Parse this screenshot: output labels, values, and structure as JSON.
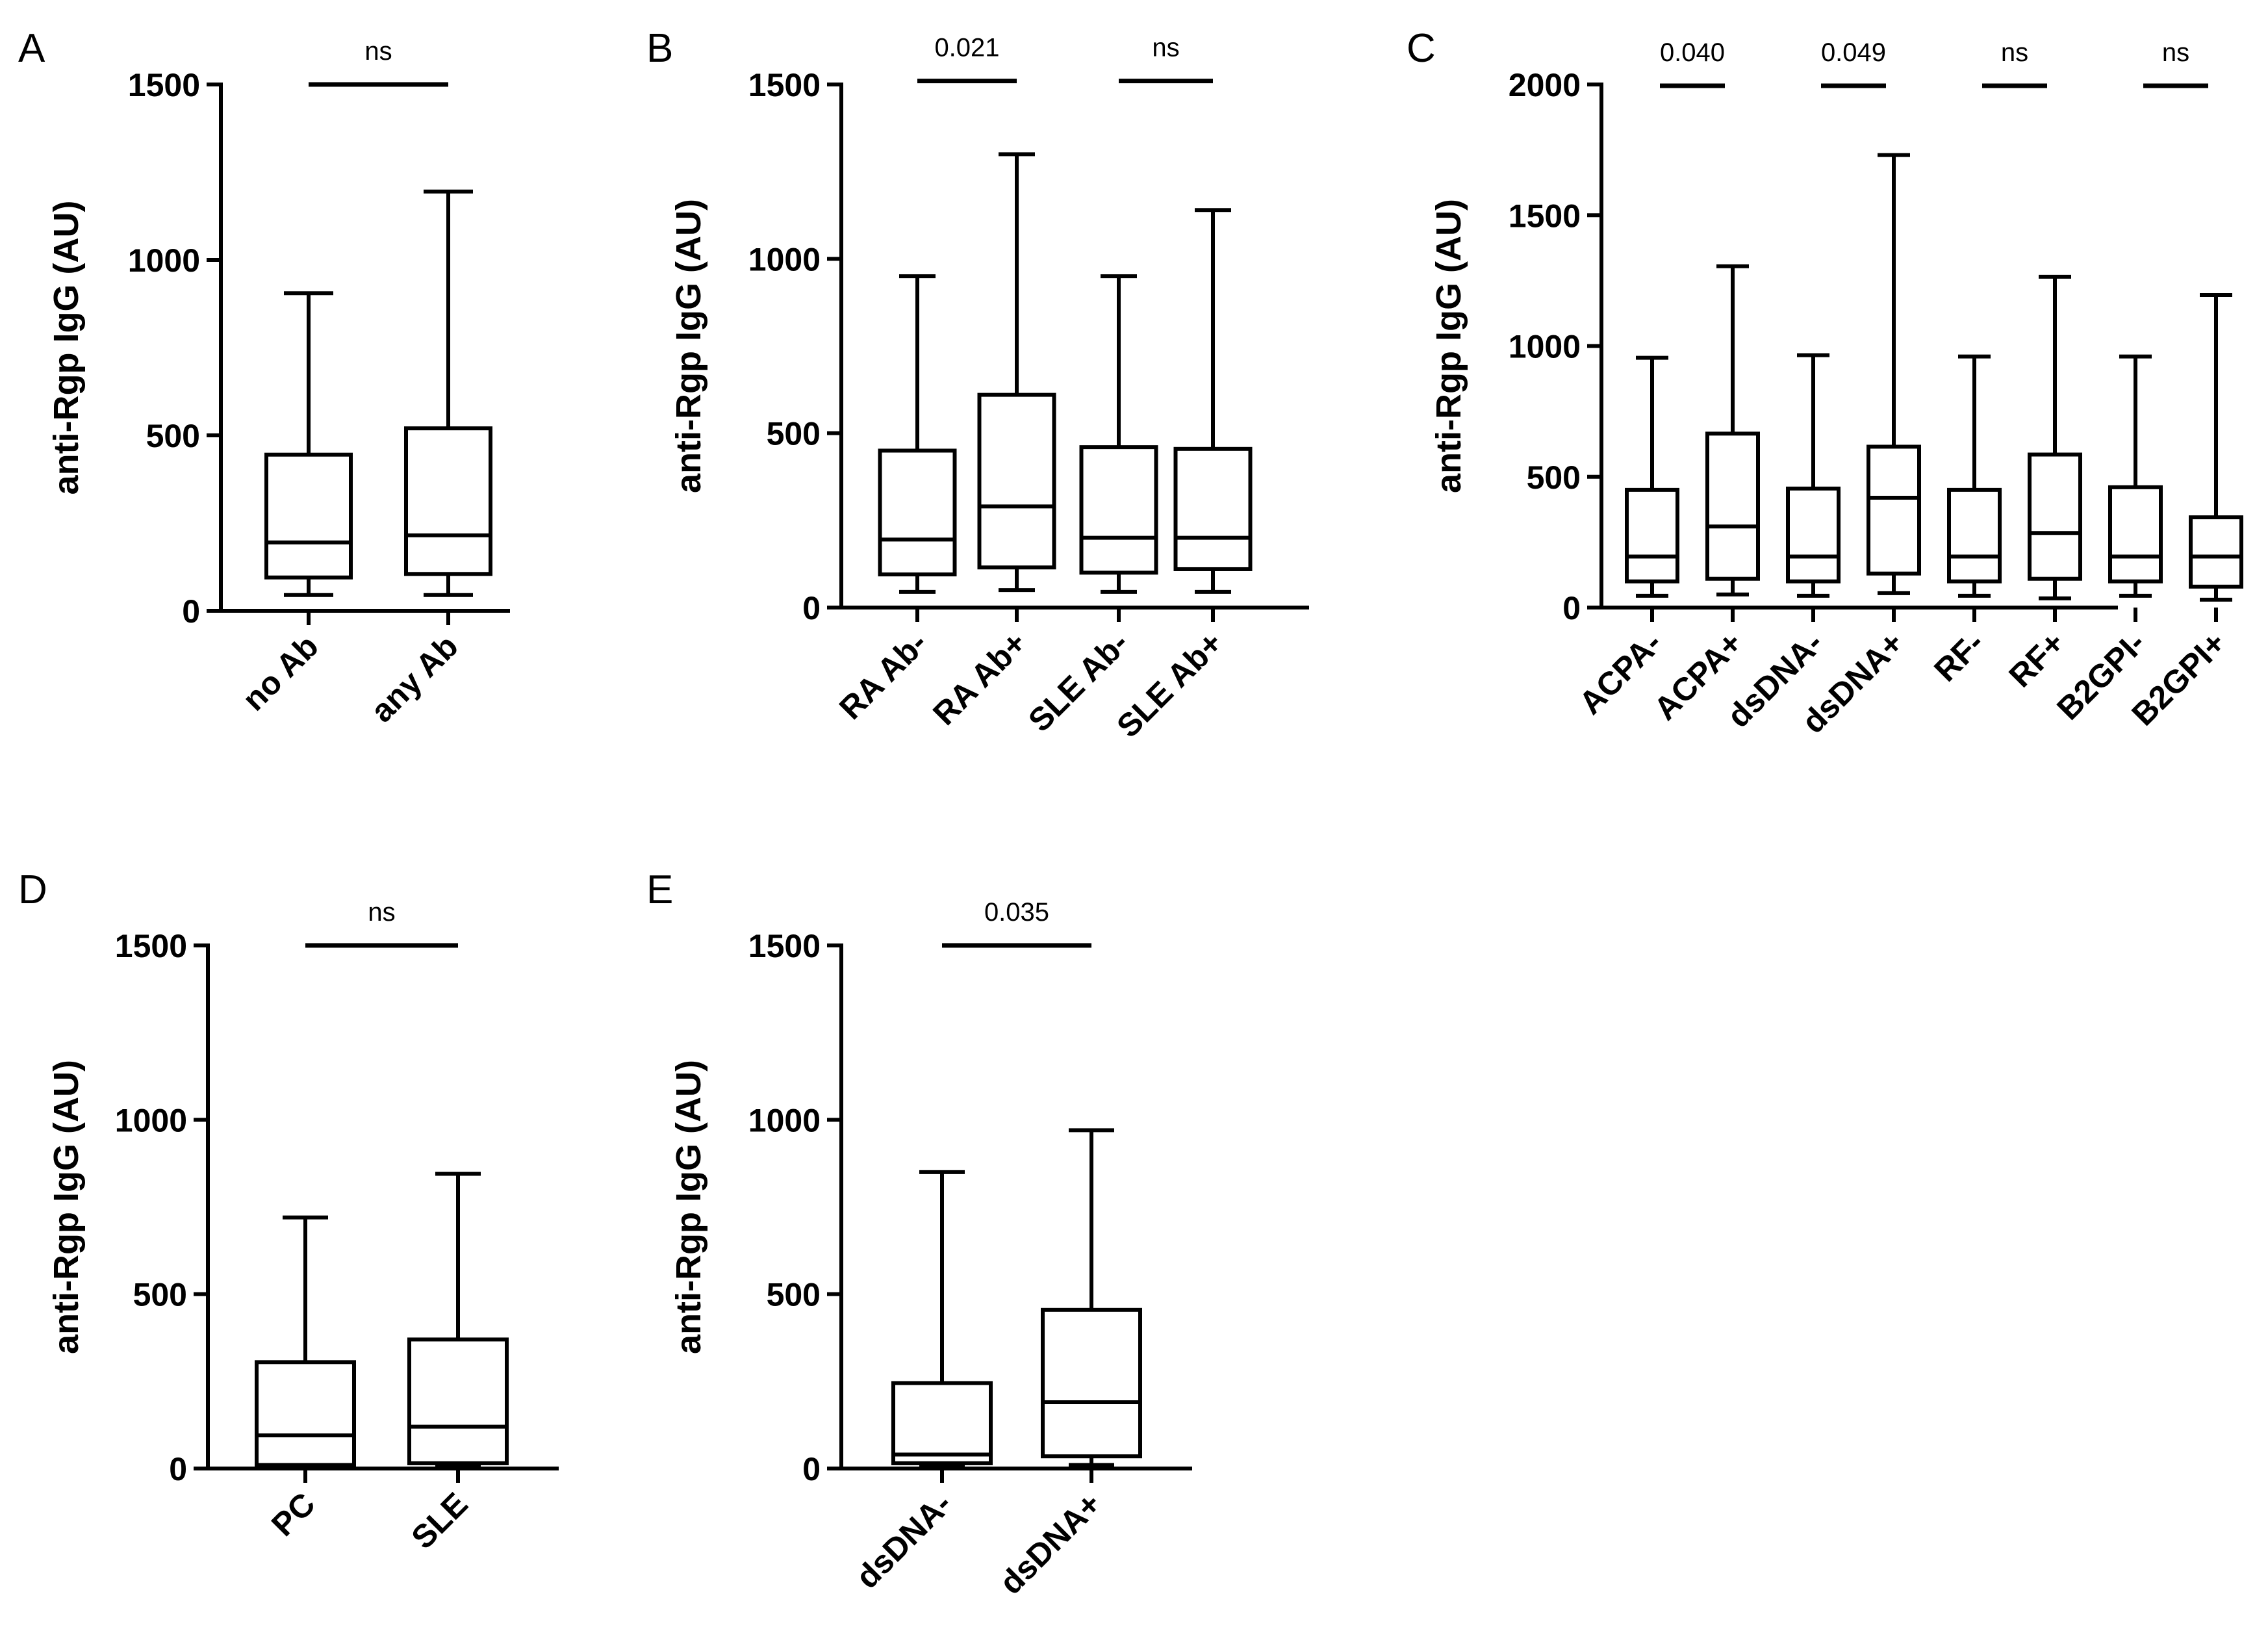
{
  "chart_data": [
    {
      "panel": "A",
      "type": "box",
      "ylabel": "anti-Rgp IgG (AU)",
      "ylim": [
        0,
        1500
      ],
      "yticks": [
        0,
        500,
        1000,
        1500
      ],
      "categories": [
        "no Ab",
        "any Ab"
      ],
      "boxes": [
        {
          "min": 45,
          "q1": 95,
          "median": 195,
          "q3": 445,
          "max": 905
        },
        {
          "min": 45,
          "q1": 105,
          "median": 215,
          "q3": 520,
          "max": 1195
        }
      ],
      "comparisons": [
        {
          "from": 0,
          "to": 1,
          "y": 1500,
          "label": "ns"
        }
      ]
    },
    {
      "panel": "B",
      "type": "box",
      "ylabel": "anti-Rgp IgG (AU)",
      "ylim": [
        0,
        1500
      ],
      "yticks": [
        0,
        500,
        1000,
        1500
      ],
      "categories": [
        "RA Ab-",
        "RA Ab+",
        "SLE Ab-",
        "SLE Ab+"
      ],
      "boxes": [
        {
          "min": 45,
          "q1": 95,
          "median": 195,
          "q3": 450,
          "max": 950
        },
        {
          "min": 50,
          "q1": 115,
          "median": 290,
          "q3": 610,
          "max": 1300
        },
        {
          "min": 45,
          "q1": 100,
          "median": 200,
          "q3": 460,
          "max": 950
        },
        {
          "min": 45,
          "q1": 110,
          "median": 200,
          "q3": 455,
          "max": 1140
        }
      ],
      "comparisons": [
        {
          "from": 0,
          "to": 1,
          "y": 1510,
          "label": "0.021"
        },
        {
          "from": 2,
          "to": 3,
          "y": 1510,
          "label": "ns"
        }
      ]
    },
    {
      "panel": "C",
      "type": "box",
      "ylabel": "anti-Rgp IgG (AU)",
      "ylim": [
        0,
        2000
      ],
      "yticks": [
        0,
        500,
        1000,
        1500,
        2000
      ],
      "categories": [
        "ACPA-",
        "ACPA+",
        "dsDNA-",
        "dsDNA+",
        "RF-",
        "RF+",
        "B2GPI-",
        "B2GPI+"
      ],
      "boxes": [
        {
          "min": 45,
          "q1": 100,
          "median": 195,
          "q3": 450,
          "max": 955
        },
        {
          "min": 50,
          "q1": 110,
          "median": 310,
          "q3": 665,
          "max": 1305
        },
        {
          "min": 45,
          "q1": 100,
          "median": 195,
          "q3": 455,
          "max": 965
        },
        {
          "min": 55,
          "q1": 130,
          "median": 420,
          "q3": 615,
          "max": 1730
        },
        {
          "min": 45,
          "q1": 100,
          "median": 195,
          "q3": 450,
          "max": 960
        },
        {
          "min": 35,
          "q1": 110,
          "median": 285,
          "q3": 585,
          "max": 1265
        },
        {
          "min": 45,
          "q1": 100,
          "median": 195,
          "q3": 460,
          "max": 960
        },
        {
          "min": 30,
          "q1": 80,
          "median": 195,
          "q3": 345,
          "max": 1195
        }
      ],
      "comparisons": [
        {
          "from": 0,
          "to": 1,
          "y": 1995,
          "label": "0.040"
        },
        {
          "from": 2,
          "to": 3,
          "y": 1995,
          "label": "0.049"
        },
        {
          "from": 4,
          "to": 5,
          "y": 1995,
          "label": "ns"
        },
        {
          "from": 6,
          "to": 7,
          "y": 1995,
          "label": "ns"
        }
      ]
    },
    {
      "panel": "D",
      "type": "box",
      "ylabel": "anti-Rgp IgG (AU)",
      "ylim": [
        0,
        1500
      ],
      "yticks": [
        0,
        500,
        1000,
        1500
      ],
      "categories": [
        "PC",
        "SLE"
      ],
      "boxes": [
        {
          "min": 5,
          "q1": 10,
          "median": 95,
          "q3": 305,
          "max": 720
        },
        {
          "min": 5,
          "q1": 15,
          "median": 120,
          "q3": 370,
          "max": 845
        }
      ],
      "comparisons": [
        {
          "from": 0,
          "to": 1,
          "y": 1500,
          "label": "ns"
        }
      ]
    },
    {
      "panel": "E",
      "type": "box",
      "ylabel": "anti-Rgp IgG (AU)",
      "ylim": [
        0,
        1500
      ],
      "yticks": [
        0,
        500,
        1000,
        1500
      ],
      "categories": [
        "dsDNA-",
        "dsDNA+"
      ],
      "boxes": [
        {
          "min": 5,
          "q1": 15,
          "median": 40,
          "q3": 245,
          "max": 850
        },
        {
          "min": 10,
          "q1": 35,
          "median": 190,
          "q3": 455,
          "max": 970
        }
      ],
      "comparisons": [
        {
          "from": 0,
          "to": 1,
          "y": 1500,
          "label": "0.035"
        }
      ]
    }
  ]
}
